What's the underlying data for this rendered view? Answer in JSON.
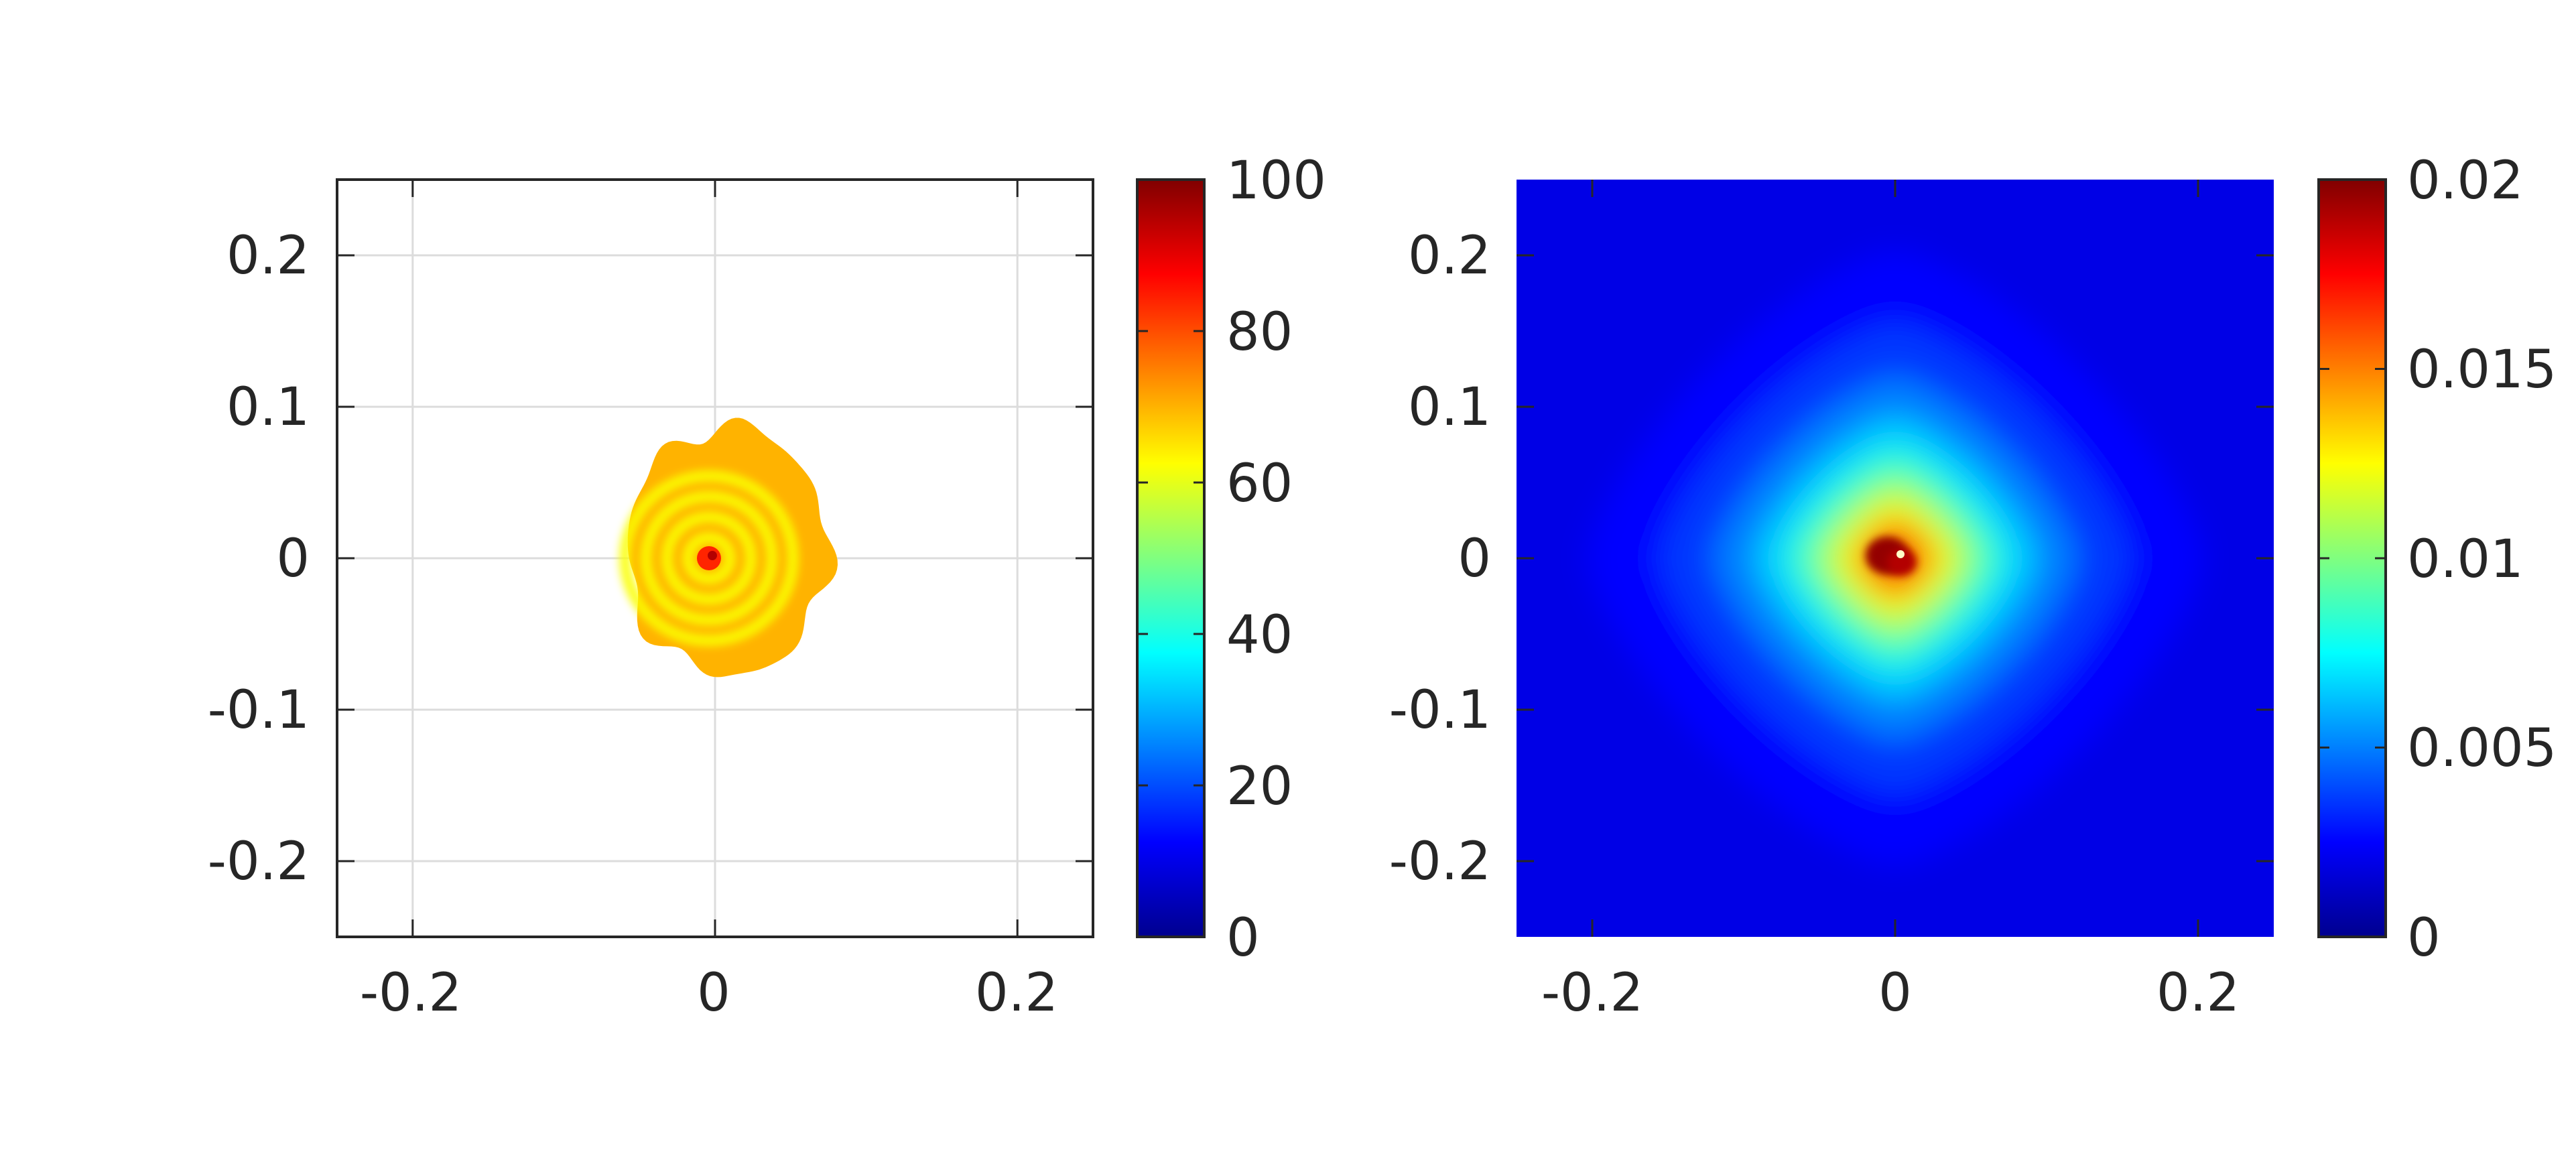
{
  "chart_data": [
    {
      "type": "heatmap",
      "title": "",
      "xlabel": "",
      "ylabel": "",
      "xlim": [
        -0.25,
        0.25
      ],
      "ylim": [
        -0.25,
        0.25
      ],
      "xticks": [
        -0.2,
        0,
        0.2
      ],
      "xtick_labels": [
        "-0.2",
        "0",
        "0.2"
      ],
      "yticks": [
        0.2,
        0.1,
        0,
        -0.1,
        -0.2
      ],
      "ytick_labels": [
        "0.2",
        "0.1",
        "0",
        "-0.1",
        "-0.2"
      ],
      "grid": true,
      "colormap": "jet",
      "background": "#ffffff",
      "colorbar": {
        "range": [
          0,
          100
        ],
        "ticks": [
          0,
          20,
          40,
          60,
          80,
          100
        ],
        "tick_labels": [
          "0",
          "20",
          "40",
          "60",
          "80",
          "100"
        ]
      },
      "field": {
        "shape": "roughly circular blob centered at origin with concentric ripple rings",
        "extent_x": [
          -0.058,
          0.075
        ],
        "extent_y": [
          -0.077,
          0.087
        ],
        "typical_value": 70,
        "min_value": 62,
        "max_value": 84,
        "ring_count": 4,
        "center": [
          -0.004,
          0.0
        ],
        "outside": "no data (blank)"
      }
    },
    {
      "type": "heatmap",
      "title": "",
      "xlabel": "",
      "ylabel": "",
      "xlim": [
        -0.25,
        0.25
      ],
      "ylim": [
        -0.25,
        0.25
      ],
      "xticks": [
        -0.2,
        0,
        0.2
      ],
      "xtick_labels": [
        "-0.2",
        "0",
        "0.2"
      ],
      "yticks": [
        0.2,
        0.1,
        0,
        -0.1,
        -0.2
      ],
      "ytick_labels": [
        "0.2",
        "0.1",
        "0",
        "-0.1",
        "-0.2"
      ],
      "grid": false,
      "colormap": "jet",
      "colorbar": {
        "range": [
          0,
          0.02
        ],
        "ticks": [
          0,
          0.005,
          0.01,
          0.015,
          0.02
        ],
        "tick_labels": [
          "0",
          "0.005",
          "0.01",
          "0.015",
          "0.02"
        ]
      },
      "field": {
        "shape": "peak at origin decaying outward in a rounded diamond",
        "center": [
          0.0,
          0.0
        ],
        "peak_value": 0.02,
        "background_value": 0.0008,
        "half_width": 0.06
      }
    }
  ]
}
